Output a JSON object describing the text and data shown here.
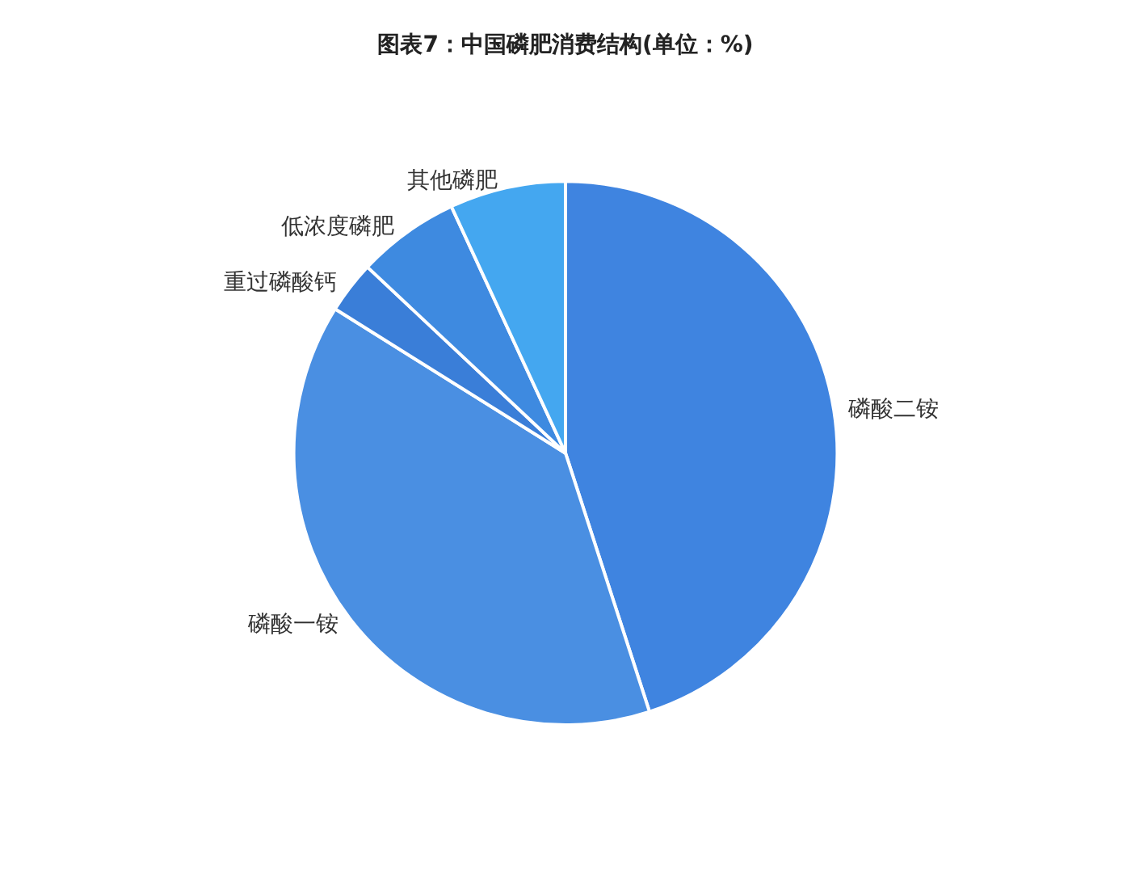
{
  "chart_data": {
    "type": "pie",
    "title": "图表7：中国磷肥消费结构(单位：%)",
    "categories": [
      "磷酸二铵",
      "磷酸一铵",
      "重过磷酸钙",
      "低浓度磷肥",
      "其他磷肥"
    ],
    "values": [
      45,
      38.9,
      3.1,
      6.1,
      6.9
    ],
    "colors": [
      "#3f84e0",
      "#4a8fe2",
      "#3a7ed8",
      "#3e8ae0",
      "#44a7f0"
    ],
    "legend": false
  }
}
